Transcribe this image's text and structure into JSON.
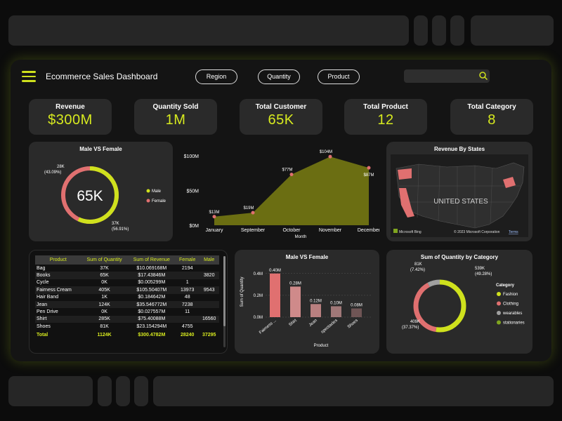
{
  "header": {
    "title": "Ecommerce Sales Dashboard",
    "filters": [
      "Region",
      "Quantity",
      "Product"
    ],
    "search_placeholder": ""
  },
  "kpis": [
    {
      "label": "Revenue",
      "value": "$300M"
    },
    {
      "label": "Quantity Sold",
      "value": "1M"
    },
    {
      "label": "Total Customer",
      "value": "65K"
    },
    {
      "label": "Total Product",
      "value": "12"
    },
    {
      "label": "Total Category",
      "value": "8"
    }
  ],
  "gender_donut": {
    "title": "Male VS Female",
    "center": "65K",
    "male_label": "37K",
    "male_pct": "(56.91%)",
    "female_label": "28K",
    "female_pct": "(43.09%)",
    "legend": [
      "Male",
      "Female"
    ],
    "male_fraction": 0.5691,
    "colors": {
      "male": "#cfe11d",
      "female": "#e07070"
    }
  },
  "map": {
    "title": "Revenue By States",
    "label": "UNITED STATES",
    "bing": "Microsoft Bing",
    "copyright": "© 2023 Microsoft Corporation",
    "terms": "Terms"
  },
  "table": {
    "headers": [
      "Product",
      "Sum of Quantity",
      "Sum of Revenue",
      "Female",
      "Male"
    ],
    "rows": [
      [
        "Bag",
        "37K",
        "$10.069168M",
        "2194",
        ""
      ],
      [
        "Books",
        "65K",
        "$17.43846M",
        "",
        "3820"
      ],
      [
        "Cycle",
        "0K",
        "$0.005299M",
        "1",
        ""
      ],
      [
        "Fairness Cream",
        "405K",
        "$105.50407M",
        "13973",
        "9543"
      ],
      [
        "Hair Band",
        "1K",
        "$0.184642M",
        "48",
        ""
      ],
      [
        "Jean",
        "124K",
        "$35.546772M",
        "7238",
        ""
      ],
      [
        "Pen Drive",
        "0K",
        "$0.027557M",
        "11",
        ""
      ],
      [
        "Shirt",
        "285K",
        "$75.40088M",
        "",
        "16560"
      ],
      [
        "Shoes",
        "81K",
        "$23.154294M",
        "4755",
        ""
      ]
    ],
    "total": [
      "Total",
      "1124K",
      "$300.4782M",
      "28240",
      "37295"
    ]
  },
  "chart_data": [
    {
      "type": "area",
      "title": "",
      "xlabel": "Month",
      "ylabel": "",
      "categories": [
        "January",
        "September",
        "October",
        "November",
        "December"
      ],
      "values": [
        13,
        19,
        77,
        104,
        87
      ],
      "data_labels": [
        "$13M",
        "$19M",
        "$77M",
        "$104M",
        "$87M"
      ],
      "y_ticks": [
        "$0M",
        "$50M",
        "$100M"
      ],
      "ylim": [
        0,
        100
      ],
      "colors": {
        "fill": "#6b6e12",
        "point": "#e07070"
      }
    },
    {
      "type": "bar",
      "title": "Male VS Female",
      "xlabel": "Product",
      "ylabel": "Sum of Quantity",
      "categories": [
        "Fairness ...",
        "Shirt",
        "Jean",
        "spectacles",
        "Shoes"
      ],
      "values": [
        0.4,
        0.28,
        0.12,
        0.1,
        0.08
      ],
      "data_labels": [
        "0.40M",
        "0.28M",
        "0.12M",
        "0.10M",
        "0.08M"
      ],
      "y_ticks": [
        "0.0M",
        "0.2M",
        "0.4M"
      ],
      "ylim": [
        0,
        0.45
      ],
      "colors": [
        "#e07070",
        "#cf8a8a",
        "#b98080",
        "#a07878",
        "#6f5555"
      ]
    },
    {
      "type": "pie",
      "title": "Sum of Quantity by Category",
      "legend_title": "Category",
      "categories": [
        "Fashion",
        "Clothing",
        "wearables",
        "stationaries"
      ],
      "values": [
        539,
        409,
        81,
        0
      ],
      "labels": [
        {
          "value": "539K",
          "pct": "(49.28%)"
        },
        {
          "value": "409K",
          "pct": "(37.37%)"
        },
        {
          "value": "81K",
          "pct": "(7.42%)"
        }
      ],
      "colors": [
        "#cfe11d",
        "#e07070",
        "#a0a0a0",
        "#7fa51f"
      ]
    }
  ]
}
